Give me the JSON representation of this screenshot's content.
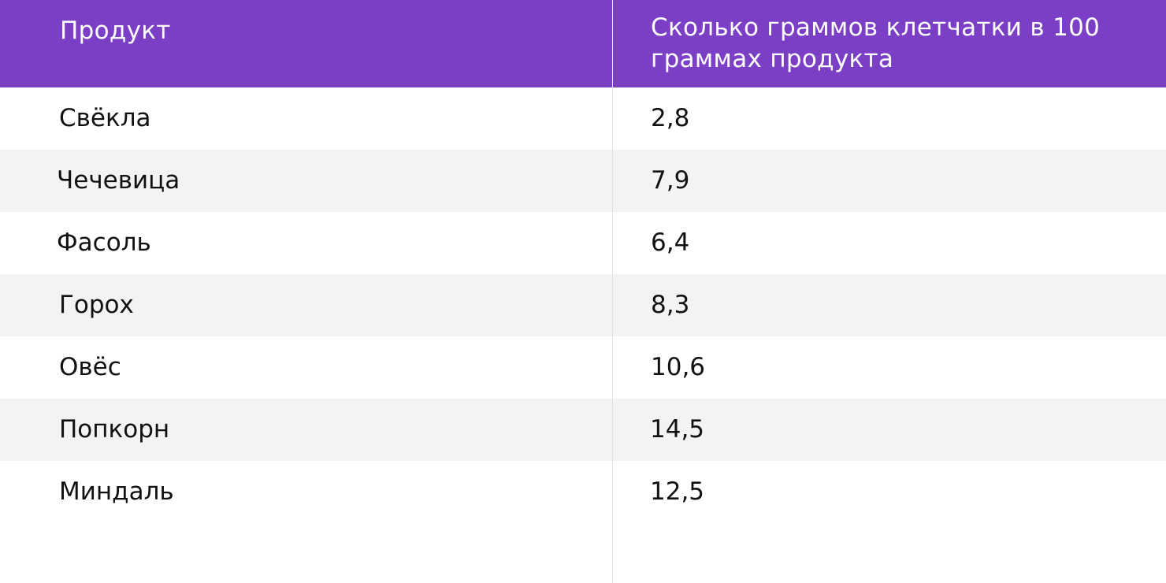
{
  "table": {
    "header": {
      "product": "Продукт",
      "fiber": "Сколько граммов клетчатки в 100 граммах продукта"
    },
    "rows": [
      {
        "product": "Свёкла",
        "fiber": "2,8"
      },
      {
        "product": "Чечевица",
        "fiber": "7,9"
      },
      {
        "product": "Фасоль",
        "fiber": "6,4"
      },
      {
        "product": "Горох",
        "fiber": "8,3"
      },
      {
        "product": "Овёс",
        "fiber": "10,6"
      },
      {
        "product": "Попкорн",
        "fiber": "14,5"
      },
      {
        "product": "Миндаль",
        "fiber": "12,5"
      }
    ],
    "colors": {
      "header_bg": "#7b3fc6",
      "header_text": "#ffffff",
      "row_shade": "#f3f3f3",
      "text": "#111111"
    }
  }
}
